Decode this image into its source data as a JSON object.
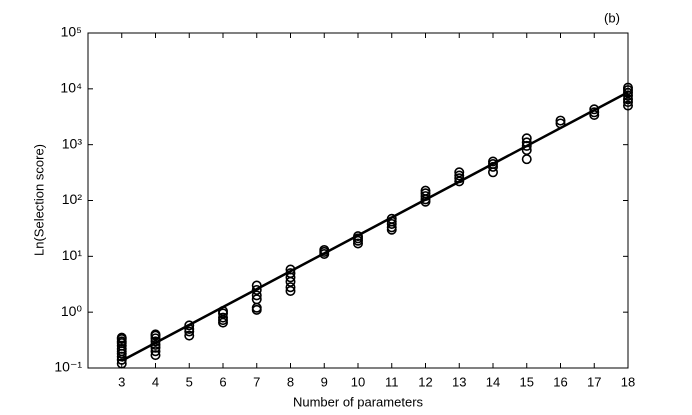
{
  "chart_data": {
    "type": "scatter",
    "annotation": "(b)",
    "xlabel": "Number of parameters",
    "ylabel": "Ln(Selection score)",
    "log_y": true,
    "grid": false,
    "xlim": [
      2,
      18
    ],
    "xticks": [
      3,
      4,
      5,
      6,
      7,
      8,
      9,
      10,
      11,
      12,
      13,
      14,
      15,
      16,
      17,
      18
    ],
    "ylim": [
      0.1,
      100000
    ],
    "yticks": [
      {
        "value": 0.1,
        "label": "10⁻¹"
      },
      {
        "value": 1,
        "label": "10⁰"
      },
      {
        "value": 10,
        "label": "10¹"
      },
      {
        "value": 100,
        "label": "10²"
      },
      {
        "value": 1000,
        "label": "10³"
      },
      {
        "value": 10000,
        "label": "10⁴"
      },
      {
        "value": 100000,
        "label": "10⁵"
      }
    ],
    "series": [
      {
        "type": "scatter",
        "color": "#000000",
        "x": [
          3,
          3,
          3,
          3,
          3,
          3,
          3,
          3,
          3,
          3,
          3,
          4,
          4,
          4,
          4,
          4,
          4,
          4,
          4,
          5,
          5,
          5,
          5,
          6,
          6,
          6,
          6,
          6,
          7,
          7,
          7,
          7,
          7,
          7,
          8,
          8,
          8,
          8,
          8,
          8,
          9,
          9,
          9,
          10,
          10,
          10,
          10,
          11,
          11,
          11,
          11,
          11,
          12,
          12,
          12,
          12,
          12,
          13,
          13,
          13,
          13,
          14,
          14,
          14,
          14,
          15,
          15,
          15,
          15,
          15,
          16,
          16,
          17,
          17,
          17,
          18,
          18,
          18,
          18,
          18,
          18,
          18
        ],
        "values": [
          0.12,
          0.14,
          0.16,
          0.18,
          0.2,
          0.22,
          0.25,
          0.28,
          0.3,
          0.33,
          0.35,
          0.17,
          0.2,
          0.23,
          0.26,
          0.3,
          0.34,
          0.38,
          0.4,
          0.38,
          0.45,
          0.5,
          0.58,
          0.65,
          0.72,
          0.8,
          0.95,
          1.05,
          1.1,
          1.2,
          1.7,
          2.0,
          2.5,
          3.0,
          2.4,
          2.8,
          3.5,
          4.2,
          5.0,
          5.8,
          11,
          12,
          13,
          17,
          19,
          21,
          23,
          30,
          33,
          38,
          42,
          47,
          95,
          105,
          120,
          135,
          150,
          220,
          250,
          280,
          320,
          320,
          400,
          450,
          500,
          550,
          800,
          950,
          1100,
          1300,
          2400,
          2700,
          3400,
          3800,
          4300,
          5000,
          5800,
          6500,
          7500,
          8500,
          9500,
          10500
        ]
      },
      {
        "type": "line",
        "color": "#000000",
        "x": [
          3,
          18
        ],
        "values": [
          0.135,
          8700
        ]
      }
    ]
  }
}
